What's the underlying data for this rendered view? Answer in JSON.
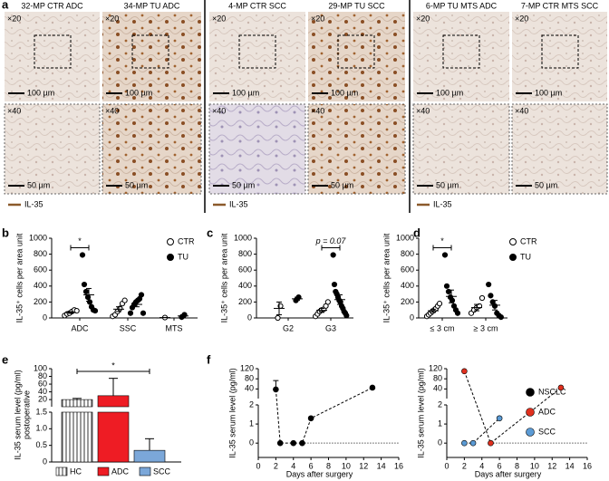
{
  "micrographs": {
    "panel": "a",
    "mag_top": "×20",
    "scale_top": "100 µm",
    "mag_bottom": "×40",
    "scale_bottom": "50 µm",
    "groups": [
      {
        "columns": [
          {
            "title": "32-MP CTR ADC"
          },
          {
            "title": "34-MP TU ADC"
          }
        ],
        "legend": "IL-35"
      },
      {
        "columns": [
          {
            "title": "4-MP CTR SCC"
          },
          {
            "title": "29-MP TU SCC"
          }
        ],
        "legend": "IL-35"
      },
      {
        "columns": [
          {
            "title": "6-MP TU MTS ADC"
          },
          {
            "title": "7-MP CTR MTS SCC"
          }
        ],
        "legend": "IL-35"
      }
    ]
  },
  "chart_data": [
    {
      "type": "dot",
      "panel": "b",
      "ylabel": "IL-35⁺ cells per area unit",
      "categories": [
        "ADC",
        "SSC",
        "MTS"
      ],
      "ylim": [
        0,
        1000
      ],
      "yticks": [
        0,
        200,
        400,
        600,
        800,
        1000
      ],
      "legend": "upper right",
      "series": [
        {
          "name": "CTR",
          "marker": "open",
          "values": [
            [
              30,
              50,
              60,
              80,
              100,
              90
            ],
            [
              20,
              40,
              80,
              120,
              180,
              220
            ],
            [
              5
            ]
          ],
          "mean": [
            68,
            110,
            5
          ],
          "sem": [
            10,
            30,
            0
          ]
        },
        {
          "name": "TU",
          "marker": "filled",
          "values": [
            [
              790,
              420,
              330,
              260,
              200,
              140,
              100,
              90
            ],
            [
              60,
              130,
              170,
              200,
              220,
              240,
              290,
              60
            ],
            [
              10,
              40
            ]
          ],
          "mean": [
            290,
            170,
            25
          ],
          "sem": [
            80,
            30,
            15
          ]
        }
      ],
      "annotations": [
        {
          "text": "*",
          "category": 0,
          "y": 880
        }
      ]
    },
    {
      "type": "dot",
      "panel": "c",
      "ylabel": "IL-35⁺ cells per area unit",
      "categories": [
        "G2",
        "G3"
      ],
      "ylim": [
        0,
        1000
      ],
      "yticks": [
        0,
        200,
        400,
        600,
        800,
        1000
      ],
      "series": [
        {
          "marker": "open",
          "values": [
            [
              0,
              150
            ],
            [
              20,
              50,
              80,
              100,
              110,
              150,
              200
            ]
          ],
          "mean": [
            120,
            95
          ],
          "sem": [
            80,
            25
          ]
        },
        {
          "marker": "filled",
          "values": [
            [
              220,
              260
            ],
            [
              790,
              420,
              330,
              300,
              260,
              220,
              200,
              150,
              120,
              80,
              60,
              30
            ]
          ],
          "mean": [
            240,
            230
          ],
          "sem": [
            20,
            60
          ]
        }
      ],
      "annotations": [
        {
          "text": "p = 0.07",
          "category": 1,
          "y": 880
        }
      ]
    },
    {
      "type": "dot",
      "panel": "d",
      "ylabel": "IL-35⁺ cells per area unit",
      "categories": [
        "≤ 3 cm",
        "≥ 3 cm"
      ],
      "ylim": [
        0,
        1000
      ],
      "yticks": [
        0,
        200,
        400,
        600,
        800,
        1000
      ],
      "legend": "right",
      "series": [
        {
          "name": "CTR",
          "marker": "open",
          "values": [
            [
              20,
              40,
              60,
              80,
              100,
              120,
              150,
              180
            ],
            [
              60,
              100,
              130,
              150,
              250
            ]
          ],
          "mean": [
            90,
            130
          ],
          "sem": [
            20,
            40
          ]
        },
        {
          "name": "TU",
          "marker": "filled",
          "values": [
            [
              790,
              400,
              330,
              260,
              220,
              150,
              100,
              60
            ],
            [
              420,
              280,
              200,
              150,
              60,
              30,
              10
            ]
          ],
          "mean": [
            270,
            160
          ],
          "sem": [
            80,
            60
          ]
        }
      ],
      "annotations": [
        {
          "text": "*",
          "category": 0,
          "y": 880
        }
      ]
    },
    {
      "type": "bar",
      "panel": "e",
      "ylabel": [
        "IL-35 serum level (pg/ml)",
        "postoperative"
      ],
      "categories": [
        "HC",
        "ADC",
        "SCC"
      ],
      "colors": [
        "hatch",
        "#ee1c24",
        "#7ba7d9"
      ],
      "values": [
        20,
        30,
        0.35
      ],
      "errors": [
        3,
        45,
        0.35
      ],
      "ylim_low": [
        0,
        1.5
      ],
      "yticks_low": [
        0,
        0.5,
        {
          "value": 1,
          "label": "1.0"
        },
        1.5
      ],
      "ylim_high": [
        1.5,
        100
      ],
      "yticks_high": [
        20,
        40,
        60,
        80,
        100
      ],
      "annotations": [
        {
          "text": "*"
        }
      ]
    },
    {
      "type": "line",
      "panel": "f",
      "ylabel": "IL-35 serum level (pg/ml)",
      "xlabel": "Days after surgery",
      "xlim": [
        0,
        16
      ],
      "xticks": [
        0,
        2,
        4,
        6,
        8,
        10,
        12,
        14,
        16
      ],
      "ylim_low": [
        -0.75,
        2
      ],
      "yticks_low": [
        0,
        1,
        2
      ],
      "ylim_high": [
        2,
        120
      ],
      "yticks_high": [
        40,
        80,
        120
      ],
      "series": [
        {
          "color": "#000000",
          "x": [
            2,
            2.5,
            4,
            5,
            6,
            13
          ],
          "values": [
            38,
            0,
            0,
            0,
            1.3,
            45
          ],
          "errors": [
            35,
            null,
            null,
            null,
            null,
            null
          ]
        }
      ]
    },
    {
      "type": "line",
      "xlabel": "Days after surgery",
      "ylabel": "IL-35 serum level (pg/ml)",
      "xlim": [
        0,
        16
      ],
      "xticks": [
        0,
        2,
        4,
        6,
        8,
        10,
        12,
        14,
        16
      ],
      "ylim_low": [
        -0.75,
        2
      ],
      "yticks_low": [
        0,
        1,
        2
      ],
      "ylim_high": [
        2,
        120
      ],
      "yticks_high": [
        40,
        80,
        120
      ],
      "legend": "right",
      "series": [
        {
          "name": "NSCLC",
          "color": "#000000",
          "x": [],
          "values": []
        },
        {
          "name": "ADC",
          "color": "#e0301e",
          "x": [
            2,
            5,
            13
          ],
          "values": [
            110,
            0,
            45
          ]
        },
        {
          "name": "SCC",
          "color": "#5b9bd5",
          "x": [
            2,
            3,
            6
          ],
          "values": [
            0,
            0,
            1.3
          ]
        }
      ]
    }
  ]
}
